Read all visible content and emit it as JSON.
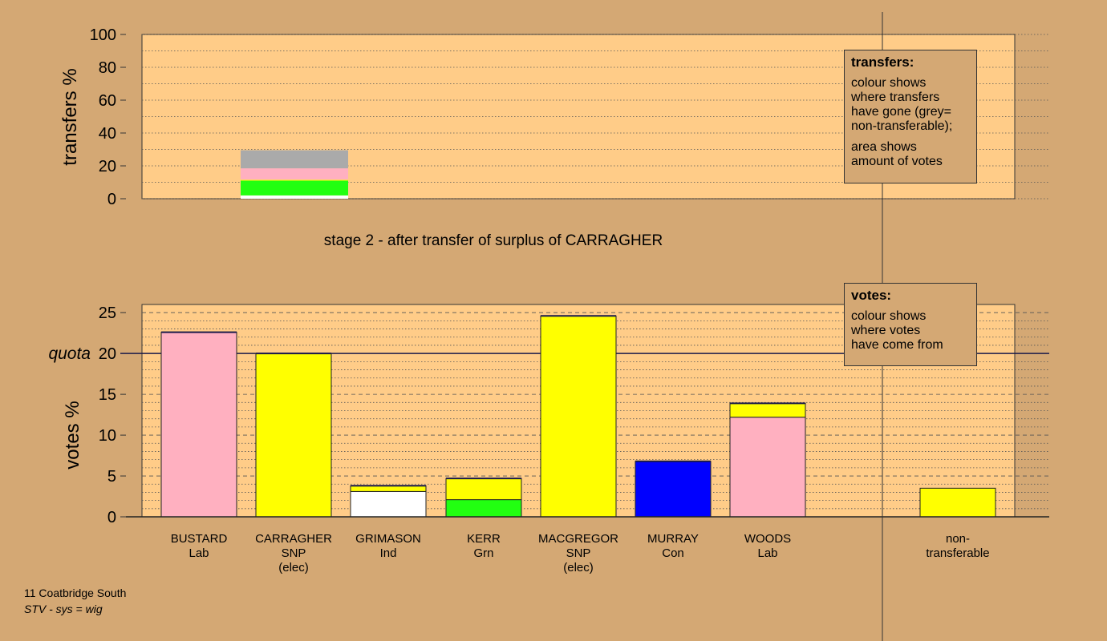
{
  "colors": {
    "background": "#d4a874",
    "plot_area": "#ffcc88",
    "Lab": "#ffb0c0",
    "SNP": "#ffff00",
    "Ind": "#ffffff",
    "Grn": "#22ff11",
    "Con": "#0000ff",
    "non_transferable": "#aaaaaa"
  },
  "stage_title": "stage 2 - after transfer of surplus of CARRAGHER",
  "legends": {
    "transfers": {
      "title": "transfers:",
      "lines": [
        "colour shows",
        "where transfers",
        "have gone (grey=",
        "non-transferable);"
      ],
      "lines2": [
        "area shows",
        "amount of votes"
      ]
    },
    "votes": {
      "title": "votes:",
      "lines": [
        "colour shows",
        "where votes",
        "have come from"
      ]
    }
  },
  "footer": {
    "constituency": "11 Coatbridge South",
    "system": "STV - sys = wig"
  },
  "chart_data": [
    {
      "type": "bar",
      "ylabel": "transfers %",
      "ylim": [
        0,
        100
      ],
      "yticks": [
        0,
        20,
        40,
        60,
        80,
        100
      ],
      "grid": "dotted",
      "stacked": true,
      "series": [
        {
          "party": "Ind",
          "values": [
            2
          ]
        },
        {
          "party": "Grn",
          "values": [
            9
          ]
        },
        {
          "party": "SNP",
          "values": [
            0.5
          ]
        },
        {
          "party": "Lab",
          "values": [
            7
          ]
        },
        {
          "party": "non_transferable",
          "values": [
            11
          ]
        }
      ]
    },
    {
      "type": "bar",
      "ylabel": "votes %",
      "ylim": [
        0,
        26
      ],
      "yticks": [
        0,
        5,
        10,
        15,
        20,
        25
      ],
      "quota": {
        "label": "quota",
        "value": 20
      },
      "grid": "dashed",
      "stacked": true,
      "candidates": [
        {
          "name": "BUSTARD",
          "party": "Lab",
          "note": "",
          "segments": [
            {
              "party": "Lab",
              "value": 22.6
            }
          ]
        },
        {
          "name": "CARRAGHER",
          "party": "SNP",
          "note": "(elec)",
          "segments": [
            {
              "party": "SNP",
              "value": 20.0
            }
          ]
        },
        {
          "name": "GRIMASON",
          "party": "Ind",
          "note": "",
          "segments": [
            {
              "party": "Ind",
              "value": 3.1
            },
            {
              "party": "SNP",
              "value": 0.7
            }
          ]
        },
        {
          "name": "KERR",
          "party": "Grn",
          "note": "",
          "segments": [
            {
              "party": "Grn",
              "value": 2.1
            },
            {
              "party": "SNP",
              "value": 2.6
            }
          ]
        },
        {
          "name": "MACGREGOR",
          "party": "SNP",
          "note": "(elec)",
          "segments": [
            {
              "party": "SNP",
              "value": 24.6
            }
          ]
        },
        {
          "name": "MURRAY",
          "party": "Con",
          "note": "",
          "segments": [
            {
              "party": "Con",
              "value": 6.8
            }
          ]
        },
        {
          "name": "WOODS",
          "party": "Lab",
          "note": "",
          "segments": [
            {
              "party": "Lab",
              "value": 12.2
            },
            {
              "party": "SNP",
              "value": 1.7
            }
          ]
        }
      ],
      "non_transferable": {
        "label_lines": [
          "non-",
          "transferable"
        ],
        "segments": [
          {
            "party": "SNP",
            "value": 3.5
          }
        ]
      }
    }
  ]
}
